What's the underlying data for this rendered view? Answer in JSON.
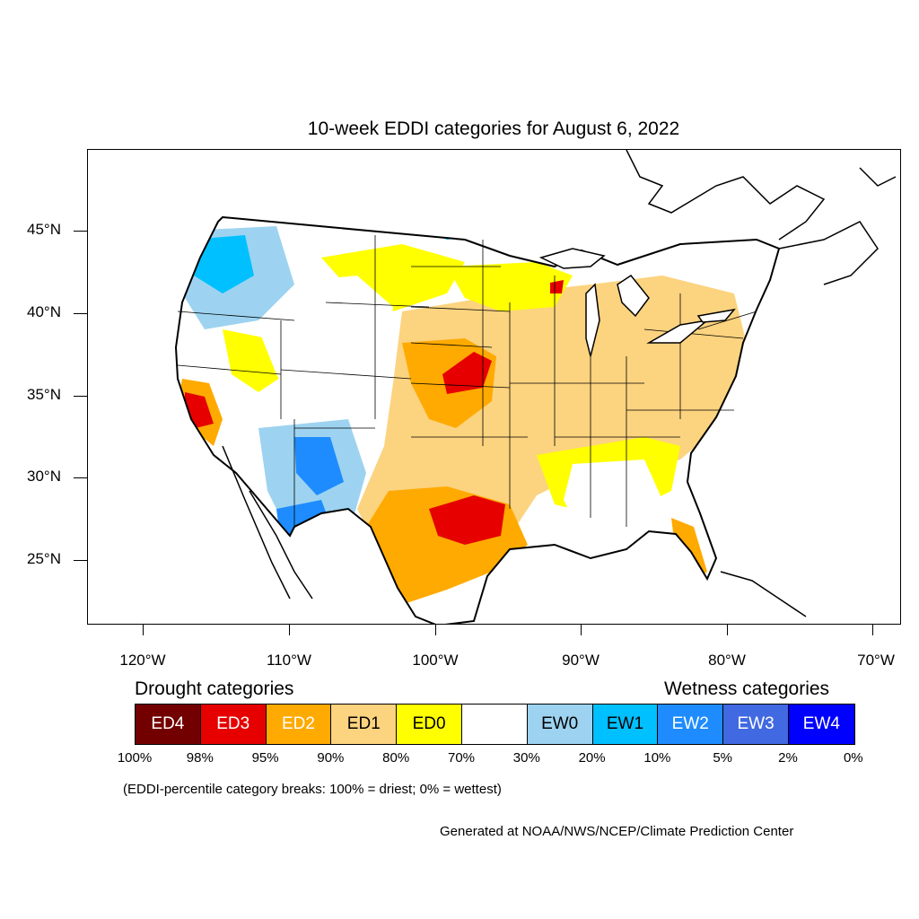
{
  "title": "10-week EDDI categories for August 6, 2022",
  "y_axis_labels": [
    "45°N",
    "40°N",
    "35°N",
    "30°N",
    "25°N"
  ],
  "x_axis_labels": [
    "120°W",
    "110°W",
    "100°W",
    "90°W",
    "80°W",
    "70°W"
  ],
  "legend": {
    "drought_heading": "Drought categories",
    "wetness_heading": "Wetness categories",
    "categories": [
      {
        "label": "ED4",
        "color": "#730000",
        "text_color": "#ffffff"
      },
      {
        "label": "ED3",
        "color": "#e60000",
        "text_color": "#ffffff"
      },
      {
        "label": "ED2",
        "color": "#ffaa00",
        "text_color": "#ffffff"
      },
      {
        "label": "ED1",
        "color": "#fcd37f",
        "text_color": "#000000"
      },
      {
        "label": "ED0",
        "color": "#ffff00",
        "text_color": "#000000"
      },
      {
        "label": "",
        "color": "#ffffff",
        "text_color": "#000000"
      },
      {
        "label": "EW0",
        "color": "#9dd3f0",
        "text_color": "#000000"
      },
      {
        "label": "EW1",
        "color": "#00c0ff",
        "text_color": "#000000"
      },
      {
        "label": "EW2",
        "color": "#1e8cff",
        "text_color": "#ffffff"
      },
      {
        "label": "EW3",
        "color": "#4169e1",
        "text_color": "#ffffff"
      },
      {
        "label": "EW4",
        "color": "#0000ff",
        "text_color": "#ffffff"
      }
    ],
    "percentiles": [
      "100%",
      "98%",
      "95%",
      "90%",
      "80%",
      "70%",
      "30%",
      "20%",
      "10%",
      "5%",
      "2%",
      "0%"
    ]
  },
  "note": "(EDDI-percentile category breaks: 100% = driest; 0% = wettest)",
  "credit": "Generated at NOAA/NWS/NCEP/Climate Prediction Center"
}
